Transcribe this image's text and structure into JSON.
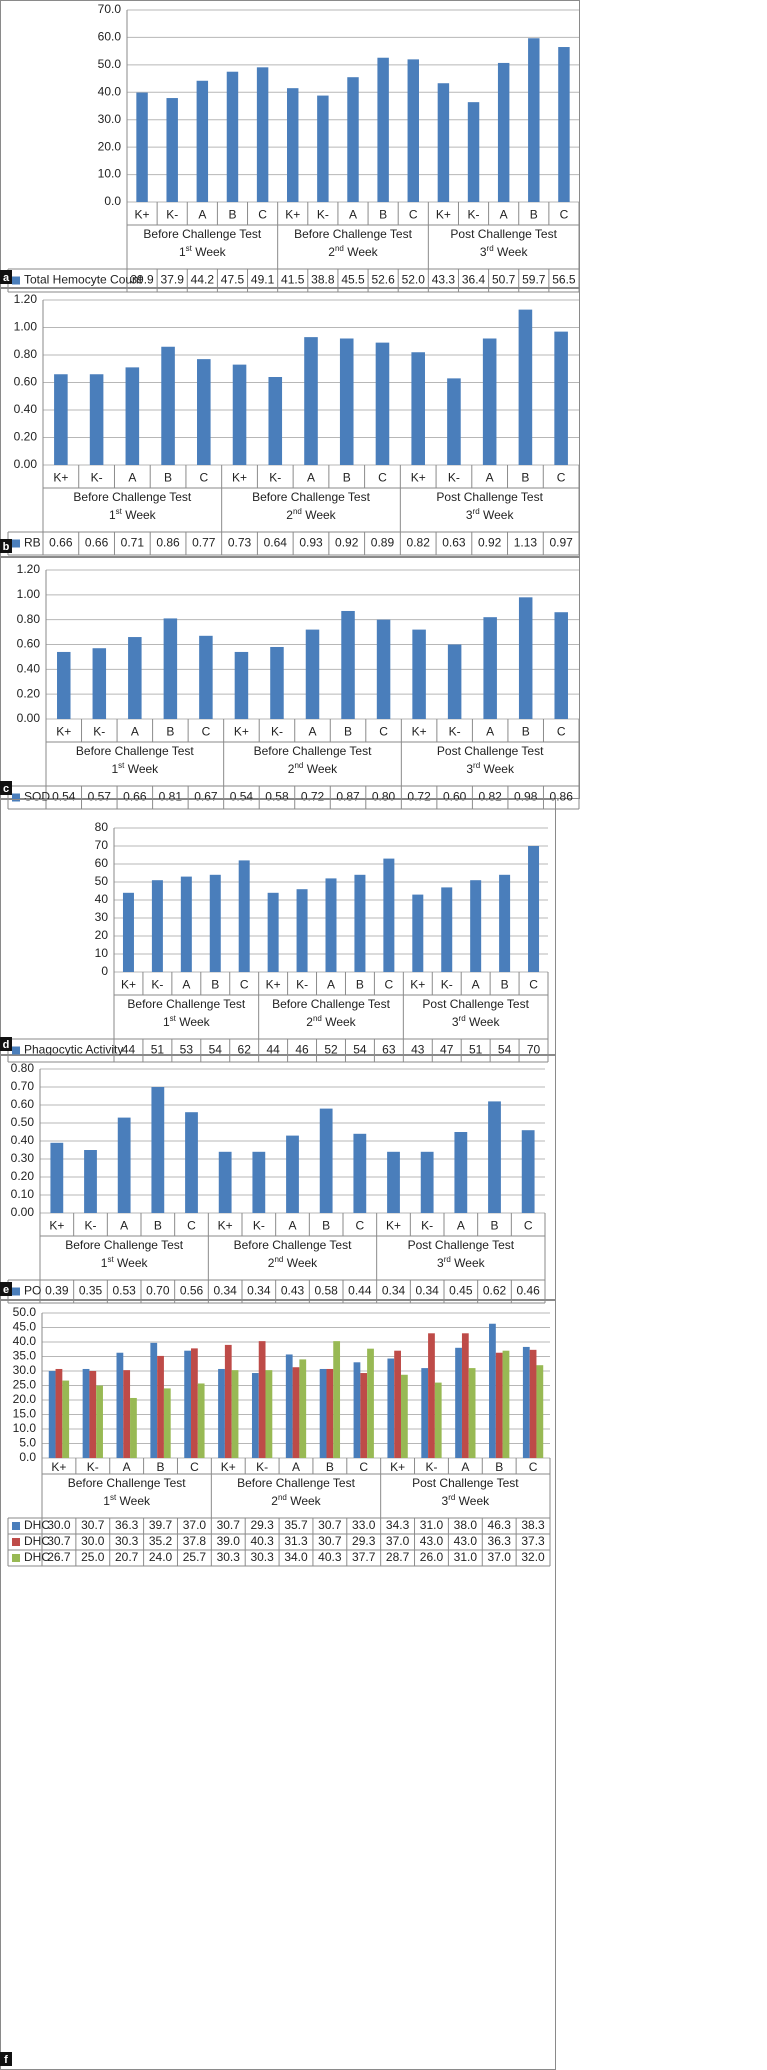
{
  "colors": {
    "blue": "#4a7ebb",
    "red": "#be4b48",
    "green": "#98b954",
    "grid": "#b7b7b7",
    "frame": "#8a8a8a"
  },
  "week_group": {
    "labels": [
      "Before Challenge Test",
      "Before Challenge Test",
      "Post Challenge Test"
    ],
    "weeks": [
      {
        "prefix": "1",
        "sup": "st",
        "suffix": " Week"
      },
      {
        "prefix": "2",
        "sup": "nd",
        "suffix": " Week"
      },
      {
        "prefix": "3",
        "sup": "rd",
        "suffix": " Week"
      }
    ]
  },
  "chart_data": [
    {
      "panel": "a",
      "type": "bar",
      "categories": [
        "K+",
        "K-",
        "A",
        "B",
        "C",
        "K+",
        "K-",
        "A",
        "B",
        "C",
        "K+",
        "K-",
        "A",
        "B",
        "C"
      ],
      "ylim": [
        0,
        70
      ],
      "ticks": [
        "0.0",
        "10.0",
        "20.0",
        "30.0",
        "40.0",
        "50.0",
        "60.0",
        "70.0"
      ],
      "series": [
        {
          "name": "Total Hemocyte Count",
          "color": "#4a7ebb",
          "values": [
            39.9,
            37.9,
            44.2,
            47.5,
            49.1,
            41.5,
            38.8,
            45.5,
            52.6,
            52.0,
            43.3,
            36.4,
            50.7,
            59.7,
            56.5
          ],
          "display": [
            "39.9",
            "37.9",
            "44.2",
            "47.5",
            "49.1",
            "41.5",
            "38.8",
            "45.5",
            "52.6",
            "52.0",
            "43.3",
            "36.4",
            "50.7",
            "59.7",
            "56.5"
          ]
        }
      ]
    },
    {
      "panel": "b",
      "type": "bar",
      "categories": [
        "K+",
        "K-",
        "A",
        "B",
        "C",
        "K+",
        "K-",
        "A",
        "B",
        "C",
        "K+",
        "K-",
        "A",
        "B",
        "C"
      ],
      "ylim": [
        0,
        1.2
      ],
      "ticks": [
        "0.00",
        "0.20",
        "0.40",
        "0.60",
        "0.80",
        "1.00",
        "1.20"
      ],
      "series": [
        {
          "name": "RB",
          "color": "#4a7ebb",
          "values": [
            0.66,
            0.66,
            0.71,
            0.86,
            0.77,
            0.73,
            0.64,
            0.93,
            0.92,
            0.89,
            0.82,
            0.63,
            0.92,
            1.13,
            0.97
          ],
          "display": [
            "0.66",
            "0.66",
            "0.71",
            "0.86",
            "0.77",
            "0.73",
            "0.64",
            "0.93",
            "0.92",
            "0.89",
            "0.82",
            "0.63",
            "0.92",
            "1.13",
            "0.97"
          ]
        }
      ]
    },
    {
      "panel": "c",
      "type": "bar",
      "categories": [
        "K+",
        "K-",
        "A",
        "B",
        "C",
        "K+",
        "K-",
        "A",
        "B",
        "C",
        "K+",
        "K-",
        "A",
        "B",
        "C"
      ],
      "ylim": [
        0,
        1.2
      ],
      "ticks": [
        "0.00",
        "0.20",
        "0.40",
        "0.60",
        "0.80",
        "1.00",
        "1.20"
      ],
      "series": [
        {
          "name": "SOD",
          "color": "#4a7ebb",
          "values": [
            0.54,
            0.57,
            0.66,
            0.81,
            0.67,
            0.54,
            0.58,
            0.72,
            0.87,
            0.8,
            0.72,
            0.6,
            0.82,
            0.98,
            0.86
          ],
          "display": [
            "0.54",
            "0.57",
            "0.66",
            "0.81",
            "0.67",
            "0.54",
            "0.58",
            "0.72",
            "0.87",
            "0.80",
            "0.72",
            "0.60",
            "0.82",
            "0.98",
            "0.86"
          ]
        }
      ]
    },
    {
      "panel": "d",
      "type": "bar",
      "categories": [
        "K+",
        "K-",
        "A",
        "B",
        "C",
        "K+",
        "K-",
        "A",
        "B",
        "C",
        "K+",
        "K-",
        "A",
        "B",
        "C"
      ],
      "ylim": [
        0,
        80
      ],
      "ticks": [
        "0",
        "10",
        "20",
        "30",
        "40",
        "50",
        "60",
        "70",
        "80"
      ],
      "series": [
        {
          "name": "Phagocytic Activity",
          "color": "#4a7ebb",
          "values": [
            44,
            51,
            53,
            54,
            62,
            44,
            46,
            52,
            54,
            63,
            43,
            47,
            51,
            54,
            70
          ],
          "display": [
            "44",
            "51",
            "53",
            "54",
            "62",
            "44",
            "46",
            "52",
            "54",
            "63",
            "43",
            "47",
            "51",
            "54",
            "70"
          ]
        }
      ]
    },
    {
      "panel": "e",
      "type": "bar",
      "categories": [
        "K+",
        "K-",
        "A",
        "B",
        "C",
        "K+",
        "K-",
        "A",
        "B",
        "C",
        "K+",
        "K-",
        "A",
        "B",
        "C"
      ],
      "ylim": [
        0,
        0.8
      ],
      "ticks": [
        "0.00",
        "0.10",
        "0.20",
        "0.30",
        "0.40",
        "0.50",
        "0.60",
        "0.70",
        "0.80"
      ],
      "series": [
        {
          "name": "PO",
          "color": "#4a7ebb",
          "values": [
            0.39,
            0.35,
            0.53,
            0.7,
            0.56,
            0.34,
            0.34,
            0.43,
            0.58,
            0.44,
            0.34,
            0.34,
            0.45,
            0.62,
            0.46
          ],
          "display": [
            "0.39",
            "0.35",
            "0.53",
            "0.70",
            "0.56",
            "0.34",
            "0.34",
            "0.43",
            "0.58",
            "0.44",
            "0.34",
            "0.34",
            "0.45",
            "0.62",
            "0.46"
          ]
        }
      ]
    },
    {
      "panel": "f",
      "type": "bar",
      "categories": [
        "K+",
        "K-",
        "A",
        "B",
        "C",
        "K+",
        "K-",
        "A",
        "B",
        "C",
        "K+",
        "K-",
        "A",
        "B",
        "C"
      ],
      "ylim": [
        0,
        50
      ],
      "ticks": [
        "0.0",
        "5.0",
        "10.0",
        "15.0",
        "20.0",
        "25.0",
        "30.0",
        "35.0",
        "40.0",
        "45.0",
        "50.0"
      ],
      "series": [
        {
          "name": "DHC",
          "color": "#4a7ebb",
          "values": [
            30.0,
            30.7,
            36.3,
            39.7,
            37.0,
            30.7,
            29.3,
            35.7,
            30.7,
            33.0,
            34.3,
            31.0,
            38.0,
            46.3,
            38.3
          ],
          "display": [
            "30.0",
            "30.7",
            "36.3",
            "39.7",
            "37.0",
            "30.7",
            "29.3",
            "35.7",
            "30.7",
            "33.0",
            "34.3",
            "31.0",
            "38.0",
            "46.3",
            "38.3"
          ]
        },
        {
          "name": "DHC",
          "color": "#be4b48",
          "values": [
            30.7,
            30.0,
            30.3,
            35.2,
            37.8,
            39.0,
            40.3,
            31.3,
            30.7,
            29.3,
            37.0,
            43.0,
            43.0,
            36.3,
            37.3
          ],
          "display": [
            "30.7",
            "30.0",
            "30.3",
            "35.2",
            "37.8",
            "39.0",
            "40.3",
            "31.3",
            "30.7",
            "29.3",
            "37.0",
            "43.0",
            "43.0",
            "36.3",
            "37.3"
          ]
        },
        {
          "name": "DHC",
          "color": "#98b954",
          "values": [
            26.7,
            25.0,
            20.7,
            24.0,
            25.7,
            30.3,
            30.3,
            34.0,
            40.3,
            37.7,
            28.7,
            26.0,
            31.0,
            37.0,
            32.0
          ],
          "display": [
            "26.7",
            "25.0",
            "20.7",
            "24.0",
            "25.7",
            "30.3",
            "30.3",
            "34.0",
            "40.3",
            "37.7",
            "28.7",
            "26.0",
            "31.0",
            "37.0",
            "32.0"
          ]
        }
      ]
    }
  ]
}
